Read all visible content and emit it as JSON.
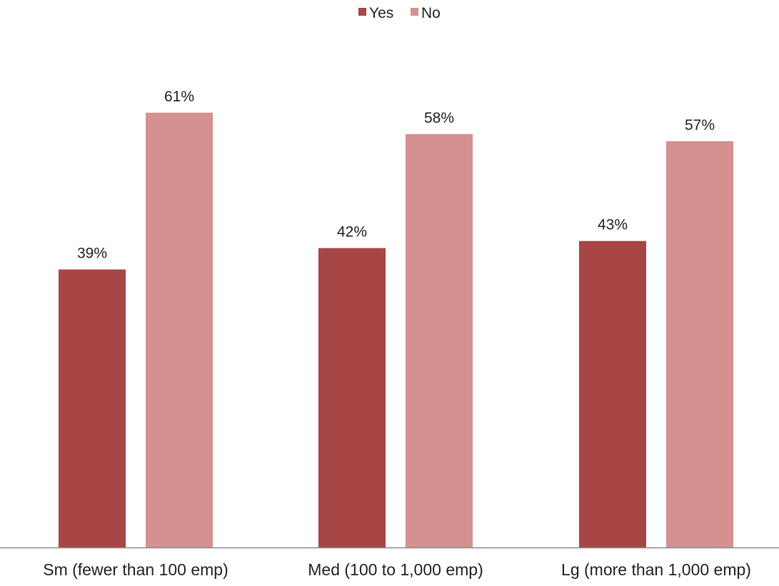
{
  "chart_data": {
    "type": "bar",
    "categories": [
      "Sm (fewer than 100 emp)",
      "Med (100 to 1,000 emp)",
      "Lg (more than 1,000 emp)"
    ],
    "series": [
      {
        "name": "Yes",
        "color": "#a84646",
        "values": [
          39,
          42,
          43
        ],
        "labels": [
          "39%",
          "42%",
          "43%"
        ]
      },
      {
        "name": "No",
        "color": "#d39191",
        "values": [
          61,
          58,
          57
        ],
        "labels": [
          "61%",
          "58%",
          "57%"
        ]
      }
    ],
    "ylim": [
      0,
      70
    ],
    "grid": false,
    "legend_position": "top-center",
    "axis_color": "#8c8c8c"
  }
}
